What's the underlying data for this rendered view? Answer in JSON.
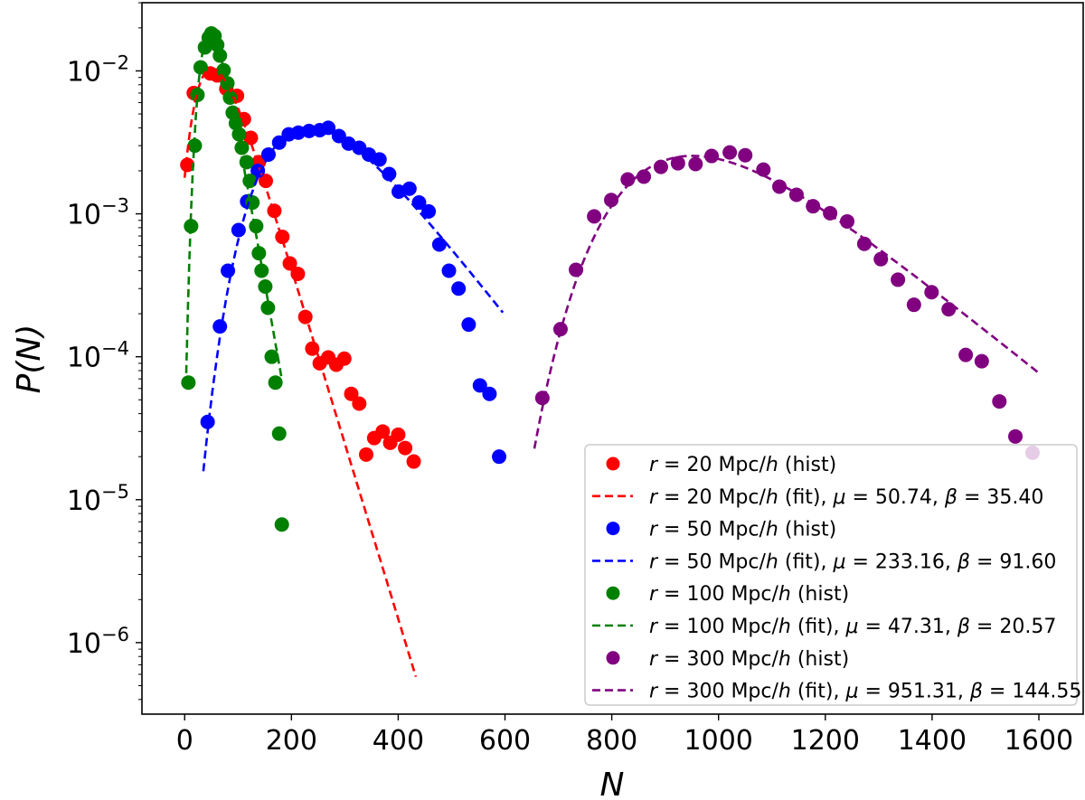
{
  "chart_data": {
    "type": "scatter",
    "xlabel": "N",
    "ylabel": "P(N)",
    "xscale": "linear",
    "yscale": "log",
    "xlim": [
      -80,
      1683
    ],
    "ylim": [
      3.16e-07,
      0.03
    ],
    "x_ticks": [
      0,
      200,
      400,
      600,
      800,
      1000,
      1200,
      1400,
      1600
    ],
    "x_tick_labels": [
      "0",
      "200",
      "400",
      "600",
      "800",
      "1000",
      "1200",
      "1400",
      "1600"
    ],
    "y_ticks": [
      0.01,
      0.001,
      0.0001,
      1e-05,
      1e-06
    ],
    "y_tick_labels": [
      "10^-2",
      "10^-3",
      "10^-4",
      "10^-5",
      "10^-6"
    ],
    "grid": false,
    "legend_placement": "lower-right",
    "series": [
      {
        "name": "r = 20 Mpc/h (hist)",
        "fit_name": "r = 20 Mpc/h (fit),  μ = 50.74,  β = 35.40",
        "color": "#ff0000",
        "fit": {
          "distribution": "gumbel",
          "mu": 50.74,
          "beta": 35.4,
          "x_range": [
            0,
            433
          ]
        },
        "x": [
          5,
          17,
          48,
          61,
          78,
          98,
          111,
          124,
          139,
          152,
          168,
          183,
          197,
          212,
          226,
          239,
          253,
          269,
          284,
          299,
          312,
          327,
          340,
          355,
          371,
          385,
          400,
          413,
          429
        ],
        "y": [
          0.0022,
          0.007,
          0.0096,
          0.0093,
          0.0075,
          0.0067,
          0.0046,
          0.0034,
          0.0023,
          0.0017,
          0.00105,
          0.00069,
          0.00045,
          0.00038,
          0.00019,
          0.000114,
          9e-05,
          9.9e-05,
          8.8e-05,
          9.7e-05,
          5.5e-05,
          4.7e-05,
          2.07e-05,
          2.7e-05,
          3e-05,
          2.5e-05,
          2.85e-05,
          2.3e-05,
          1.85e-05
        ]
      },
      {
        "name": "r = 50 Mpc/h (hist)",
        "fit_name": "r = 50 Mpc/h (fit),  μ = 233.16,  β = 91.60",
        "color": "#0000ff",
        "fit": {
          "distribution": "gumbel",
          "mu": 233.16,
          "beta": 91.6,
          "x_range": [
            35,
            596
          ]
        },
        "x": [
          43,
          66,
          81,
          101,
          117,
          137,
          157,
          177,
          195,
          213,
          233,
          253,
          269,
          289,
          307,
          327,
          345,
          365,
          383,
          401,
          421,
          439,
          457,
          477,
          495,
          513,
          532,
          553,
          571,
          589
        ],
        "y": [
          3.5e-05,
          0.000163,
          0.0004,
          0.00077,
          0.00122,
          0.002,
          0.0026,
          0.00315,
          0.0036,
          0.0037,
          0.0038,
          0.00385,
          0.004,
          0.0035,
          0.0031,
          0.0029,
          0.0026,
          0.0024,
          0.0019,
          0.00143,
          0.0015,
          0.0012,
          0.00104,
          0.00061,
          0.0004,
          0.0003,
          0.000168,
          6.3e-05,
          5.5e-05,
          2e-05
        ]
      },
      {
        "name": "r = 100 Mpc/h (hist)",
        "fit_name": "r = 100 Mpc/h (fit),  μ = 47.31,  β = 20.57",
        "color": "#008000",
        "fit": {
          "distribution": "gumbel",
          "mu": 47.31,
          "beta": 20.57,
          "x_range": [
            2.5,
            182
          ]
        },
        "x": [
          7,
          12,
          19,
          24,
          30,
          38,
          45,
          50,
          56,
          61,
          66,
          73,
          80,
          85,
          90,
          96,
          102,
          107,
          116,
          122,
          127,
          134,
          139,
          144,
          151,
          156,
          163,
          170,
          177,
          182
        ],
        "y": [
          6.6e-05,
          0.00082,
          0.003,
          0.0068,
          0.0106,
          0.0146,
          0.0171,
          0.0183,
          0.0176,
          0.0152,
          0.0128,
          0.0101,
          0.0082,
          0.0065,
          0.0051,
          0.0043,
          0.0036,
          0.0029,
          0.0023,
          0.0017,
          0.0012,
          0.00082,
          0.00053,
          0.0004,
          0.00031,
          0.00022,
          0.0001,
          6.6e-05,
          2.9e-05,
          6.7e-06
        ]
      },
      {
        "name": "r = 300 Mpc/h (hist)",
        "fit_name": "r = 300 Mpc/h (fit),  μ = 951.31,  β = 144.55",
        "color": "#800080",
        "fit": {
          "distribution": "gumbel",
          "mu": 951.31,
          "beta": 144.55,
          "x_range": [
            655,
            1600
          ]
        },
        "x": [
          670,
          704,
          733,
          767,
          799,
          830,
          860,
          892,
          924,
          957,
          987,
          1021,
          1050,
          1084,
          1114,
          1146,
          1177,
          1209,
          1241,
          1273,
          1304,
          1336,
          1366,
          1399,
          1431,
          1463,
          1493,
          1526,
          1556,
          1588
        ],
        "y": [
          5.15e-05,
          0.000156,
          0.000406,
          0.00096,
          0.00125,
          0.00174,
          0.00182,
          0.00213,
          0.00226,
          0.00223,
          0.00254,
          0.00269,
          0.00257,
          0.00204,
          0.00155,
          0.00136,
          0.00113,
          0.00101,
          0.000885,
          0.000617,
          0.000482,
          0.000346,
          0.000231,
          0.000283,
          0.000215,
          0.000103,
          9.3e-05,
          4.87e-05,
          2.77e-05,
          2.13e-05
        ]
      }
    ]
  }
}
